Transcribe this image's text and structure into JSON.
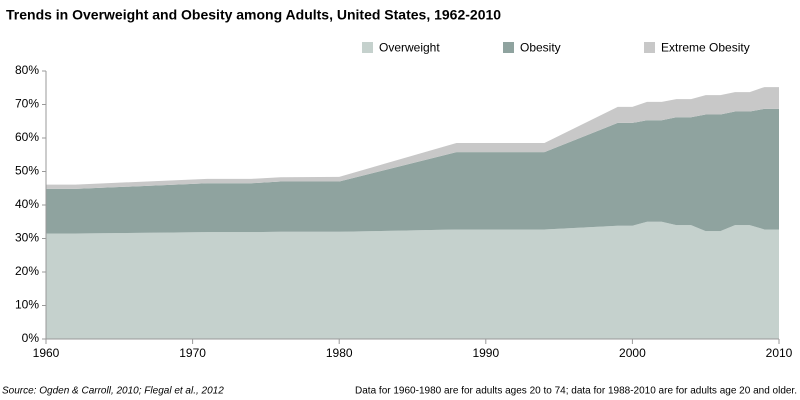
{
  "chart_data": {
    "type": "stacked_area",
    "title": "Trends in Overweight and Obesity among Adults, United States, 1962-2010",
    "x": [
      1960,
      1962,
      1971,
      1974,
      1976,
      1980,
      1988,
      1994,
      1999,
      2000,
      2001,
      2002,
      2003,
      2004,
      2005,
      2006,
      2007,
      2008,
      2009,
      2010
    ],
    "series": [
      {
        "name": "Overweight",
        "color": "#c5d1cd",
        "values": [
          31.5,
          31.5,
          31.9,
          31.9,
          32.0,
          32.0,
          32.7,
          32.7,
          33.8,
          33.8,
          35.0,
          35.0,
          34.0,
          34.0,
          32.2,
          32.2,
          34.0,
          34.0,
          32.7,
          32.7
        ]
      },
      {
        "name": "Obesity",
        "color": "#8fa39f",
        "values": [
          13.3,
          13.3,
          14.6,
          14.6,
          15.0,
          15.0,
          23.1,
          23.1,
          30.7,
          30.7,
          30.3,
          30.3,
          32.2,
          32.2,
          34.8,
          34.8,
          33.9,
          33.9,
          36.0,
          36.0
        ]
      },
      {
        "name": "Extreme Obesity",
        "color": "#c8c8c8",
        "values": [
          1.3,
          1.3,
          1.3,
          1.3,
          1.3,
          1.4,
          2.7,
          2.7,
          4.8,
          4.8,
          5.5,
          5.5,
          5.4,
          5.4,
          5.8,
          5.8,
          5.8,
          5.8,
          6.5,
          6.5
        ]
      }
    ],
    "xlim": [
      1960,
      2010
    ],
    "xticks": [
      1960,
      1970,
      1980,
      1990,
      2000,
      2010
    ],
    "ylim": [
      0,
      80
    ],
    "yticks": [
      {
        "value": 0,
        "label": "0%"
      },
      {
        "value": 10,
        "label": "10%"
      },
      {
        "value": 20,
        "label": "20%"
      },
      {
        "value": 30,
        "label": "30%"
      },
      {
        "value": 40,
        "label": "40%"
      },
      {
        "value": 50,
        "label": "50%"
      },
      {
        "value": 60,
        "label": "60%"
      },
      {
        "value": 70,
        "label": "70%"
      },
      {
        "value": 80,
        "label": "80%"
      }
    ],
    "legend": "top",
    "source": "Source: Ogden & Carroll, 2010; Flegal et al., 2012",
    "note": "Data for 1960-1980 are for adults ages 20 to 74; data for 1988-2010 are for adults age 20 and older."
  }
}
